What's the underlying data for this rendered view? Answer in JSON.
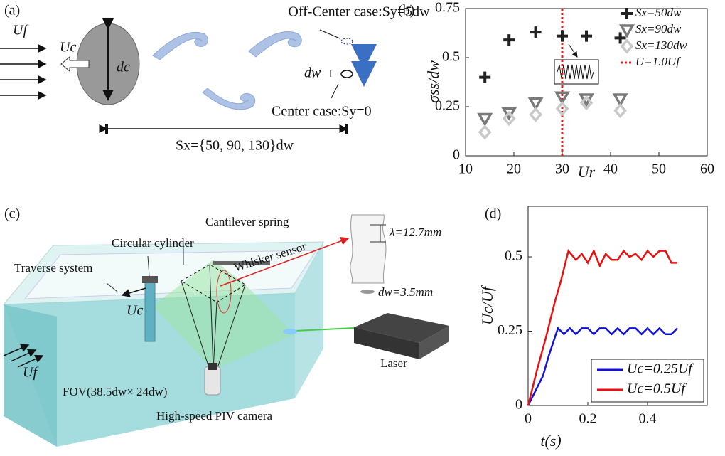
{
  "panel_labels": [
    "(a)",
    "(b)",
    "(c)",
    "(d)"
  ],
  "diagram_a": {
    "free_stream": "Uf",
    "cylinder_velocity": "Uc",
    "cylinder_diameter": "dc",
    "whisker_diameter": "dw",
    "off_center": "Off-Center case:Sy=5dw",
    "center": "Center case:Sy=0",
    "spacing": "Sx={50, 90, 130}dw"
  },
  "diagram_c": {
    "spring": "Cantilever spring",
    "cylinder": "Circular cylinder",
    "traverse": "Traverse system",
    "sensor": "Whisker sensor",
    "wavelength": "λ=12.7mm",
    "diameter": "dw=3.5mm",
    "cylinder_velocity": "Uc",
    "free_stream": "Uf",
    "fov": "FOV(38.5dw× 24dw)",
    "laser": "Laser",
    "camera": "High-speed PIV camera"
  },
  "chart_data": [
    {
      "type": "scatter",
      "xlabel": "Ur",
      "ylabel": "σss/dw",
      "xlim": [
        10,
        60
      ],
      "ylim": [
        0,
        0.75
      ],
      "xticks": [
        10,
        20,
        30,
        40,
        50,
        60
      ],
      "yticks": [
        0,
        0.25,
        0.5,
        0.75
      ],
      "legend": "upper right",
      "series": [
        {
          "name": "Sx=50dw",
          "marker": "plus",
          "color": "#222222",
          "x": [
            14,
            19,
            24.5,
            30,
            35,
            42
          ],
          "values": [
            0.4,
            0.59,
            0.63,
            0.61,
            0.61,
            0.6
          ]
        },
        {
          "name": "Sx=90dw",
          "marker": "triangle",
          "color": "#7a7a7a",
          "x": [
            14,
            19,
            24.5,
            30,
            35,
            42
          ],
          "values": [
            0.19,
            0.22,
            0.27,
            0.3,
            0.29,
            0.29
          ]
        },
        {
          "name": "Sx=130dw",
          "marker": "diamond",
          "color": "#c8c8c8",
          "x": [
            14,
            19,
            24.5,
            30,
            35,
            42
          ],
          "values": [
            0.12,
            0.19,
            0.21,
            0.24,
            0.27,
            0.23
          ]
        }
      ],
      "reference_line": {
        "name": "U=1.0Uf",
        "x": 30,
        "color": "#e02020"
      }
    },
    {
      "type": "line",
      "xlabel": "t(s)",
      "ylabel": "Uc/Uf",
      "xlim": [
        0,
        0.6
      ],
      "ylim": [
        0,
        0.67
      ],
      "xticks": [
        0,
        0.2,
        0.4
      ],
      "yticks": [
        0,
        0.25,
        0.5
      ],
      "legend": "lower right",
      "series": [
        {
          "name": "Uc=0.25Uf",
          "color": "#1010e0",
          "x": [
            0,
            0.02,
            0.05,
            0.07,
            0.1,
            0.12,
            0.14,
            0.16,
            0.18,
            0.2,
            0.22,
            0.24,
            0.26,
            0.28,
            0.3,
            0.32,
            0.34,
            0.36,
            0.38,
            0.4,
            0.42,
            0.44,
            0.46,
            0.48,
            0.5
          ],
          "values": [
            0,
            0.04,
            0.1,
            0.17,
            0.26,
            0.24,
            0.26,
            0.24,
            0.26,
            0.26,
            0.24,
            0.26,
            0.26,
            0.24,
            0.26,
            0.24,
            0.26,
            0.26,
            0.24,
            0.26,
            0.24,
            0.26,
            0.24,
            0.24,
            0.26
          ]
        },
        {
          "name": "Uc=0.5Uf",
          "color": "#e81010",
          "x": [
            0,
            0.03,
            0.06,
            0.09,
            0.11,
            0.135,
            0.16,
            0.18,
            0.2,
            0.22,
            0.24,
            0.26,
            0.28,
            0.3,
            0.32,
            0.34,
            0.36,
            0.38,
            0.4,
            0.42,
            0.44,
            0.46,
            0.48,
            0.5
          ],
          "values": [
            0,
            0.12,
            0.23,
            0.35,
            0.42,
            0.52,
            0.49,
            0.51,
            0.48,
            0.52,
            0.47,
            0.51,
            0.49,
            0.49,
            0.52,
            0.5,
            0.51,
            0.49,
            0.52,
            0.5,
            0.52,
            0.52,
            0.48,
            0.48
          ]
        }
      ]
    }
  ]
}
